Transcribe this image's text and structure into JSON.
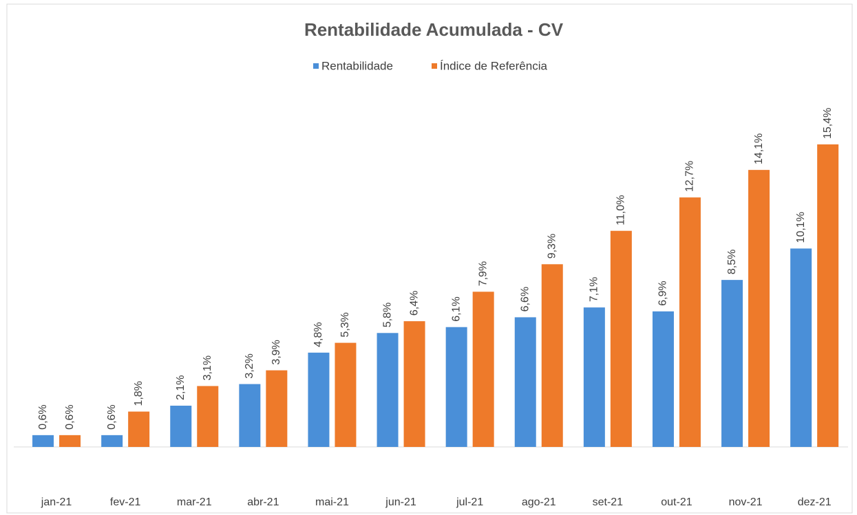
{
  "chart_data": {
    "type": "bar",
    "title": "Rentabilidade Acumulada - CV",
    "categories": [
      "jan-21",
      "fev-21",
      "mar-21",
      "abr-21",
      "mai-21",
      "jun-21",
      "jul-21",
      "ago-21",
      "set-21",
      "out-21",
      "nov-21",
      "dez-21"
    ],
    "series": [
      {
        "name": "Rentabilidade",
        "color": "#4a8fd8",
        "values": [
          0.6,
          0.6,
          2.1,
          3.2,
          4.8,
          5.8,
          6.1,
          6.6,
          7.1,
          6.9,
          8.5,
          10.1
        ],
        "value_labels": [
          "0,6%",
          "0,6%",
          "2,1%",
          "3,2%",
          "4,8%",
          "5,8%",
          "6,1%",
          "6,6%",
          "7,1%",
          "6,9%",
          "8,5%",
          "10,1%"
        ]
      },
      {
        "name": "Índice de Referência",
        "color": "#ee7a2a",
        "values": [
          0.6,
          1.8,
          3.1,
          3.9,
          5.3,
          6.4,
          7.9,
          9.3,
          11.0,
          12.7,
          14.1,
          15.4
        ],
        "value_labels": [
          "0,6%",
          "1,8%",
          "3,1%",
          "3,9%",
          "5,3%",
          "6,4%",
          "7,9%",
          "9,3%",
          "11,0%",
          "12,7%",
          "14,1%",
          "15,4%"
        ]
      }
    ],
    "legend": "top"
  }
}
